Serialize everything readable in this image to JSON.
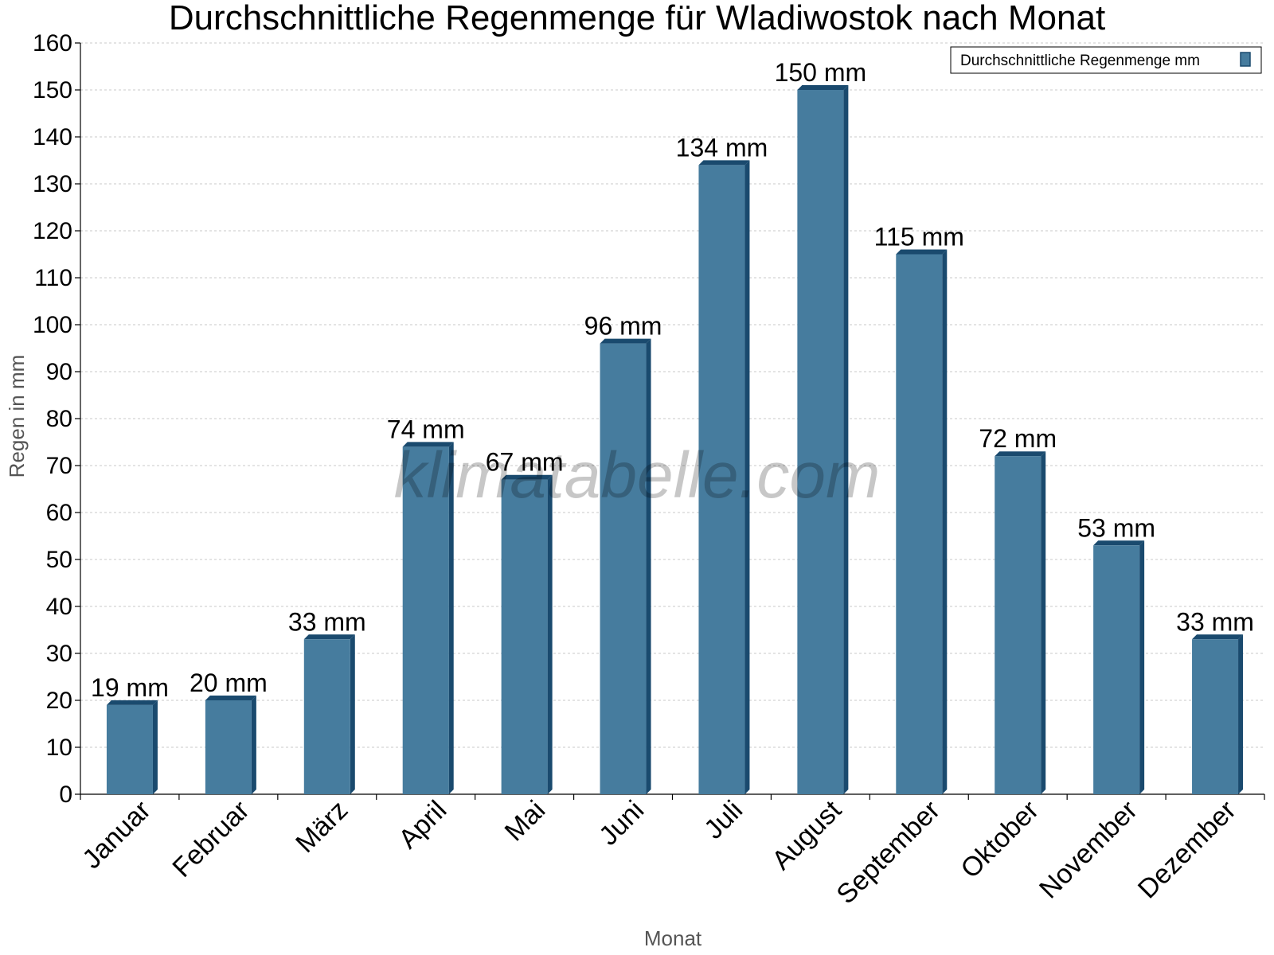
{
  "chart_data": {
    "type": "bar",
    "title": "Durchschnittliche Regenmenge für Wladiwostok nach Monat",
    "xlabel": "Monat",
    "ylabel": "Regen in mm",
    "categories": [
      "Januar",
      "Februar",
      "März",
      "April",
      "Mai",
      "Juni",
      "Juli",
      "August",
      "September",
      "Oktober",
      "November",
      "Dezember"
    ],
    "series": [
      {
        "name": "Durchschnittliche Regenmenge mm",
        "values": [
          19,
          20,
          33,
          74,
          67,
          96,
          134,
          150,
          115,
          72,
          53,
          33
        ],
        "labels": [
          "19 mm",
          "20 mm",
          "33 mm",
          "74 mm",
          "67 mm",
          "96 mm",
          "134 mm",
          "150 mm",
          "115 mm",
          "72 mm",
          "53 mm",
          "33 mm"
        ],
        "color": "#467c9e",
        "edge_color": "#1a4a6e"
      }
    ],
    "ylim": [
      0,
      160
    ],
    "yticks": [
      0,
      10,
      20,
      30,
      40,
      50,
      60,
      70,
      80,
      90,
      100,
      110,
      120,
      130,
      140,
      150,
      160
    ],
    "grid": true,
    "legend_position": "top-right",
    "watermark": "klimatabelle.com"
  }
}
